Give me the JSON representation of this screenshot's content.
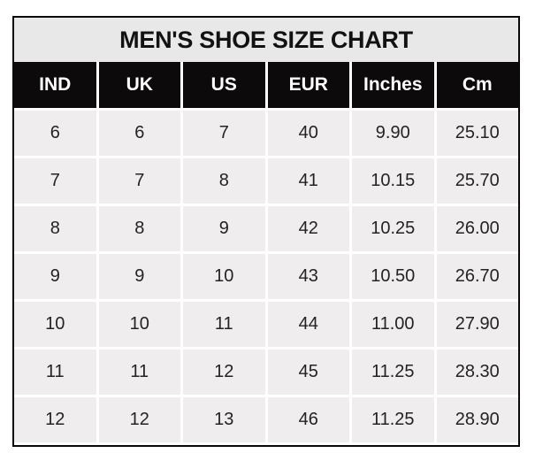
{
  "chart_data": {
    "type": "table",
    "title": "MEN'S SHOE SIZE CHART",
    "columns": [
      "IND",
      "UK",
      "US",
      "EUR",
      "Inches",
      "Cm"
    ],
    "rows": [
      [
        "6",
        "6",
        "7",
        "40",
        "9.90",
        "25.10"
      ],
      [
        "7",
        "7",
        "8",
        "41",
        "10.15",
        "25.70"
      ],
      [
        "8",
        "8",
        "9",
        "42",
        "10.25",
        "26.00"
      ],
      [
        "9",
        "9",
        "10",
        "43",
        "10.50",
        "26.70"
      ],
      [
        "10",
        "10",
        "11",
        "44",
        "11.00",
        "27.90"
      ],
      [
        "11",
        "11",
        "12",
        "45",
        "11.25",
        "28.30"
      ],
      [
        "12",
        "12",
        "13",
        "46",
        "11.25",
        "28.90"
      ]
    ],
    "layout": {
      "legend": "none",
      "grid": "white gridlines between gray cells"
    }
  },
  "colors": {
    "outer_border": "#0a0809",
    "title_background": "#e9e8e8",
    "header_background": "#0d0a0b",
    "header_text": "#ffffff",
    "cell_background": "#efedee",
    "cell_text": "#232323",
    "grid_line": "#ffffff",
    "page_background": "#ffffff"
  }
}
